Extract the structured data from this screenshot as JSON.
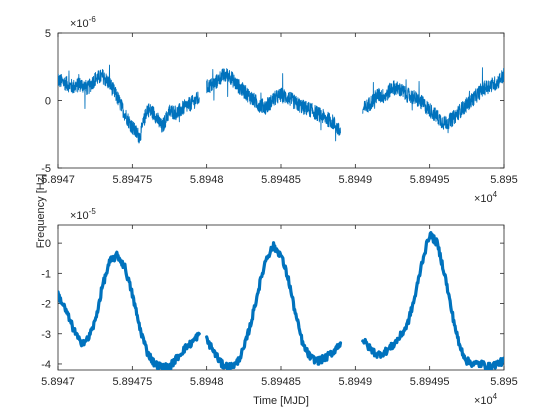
{
  "chart_data": [
    {
      "type": "line",
      "title": "",
      "xlabel": "",
      "ylabel": "",
      "xlim": [
        58947,
        58950
      ],
      "ylim": [
        -5e-06,
        5e-06
      ],
      "x_ticks": [
        "5.8947",
        "5.89475",
        "5.8948",
        "5.89485",
        "5.8949",
        "5.89495",
        "5.895"
      ],
      "y_ticks": [
        "-5",
        "0",
        "5"
      ],
      "y_exponent": "-6",
      "x_exponent": "4",
      "grid": false,
      "color": "#0072BD",
      "series": [
        {
          "segments": [
            {
              "x": [
                58947.0,
                58947.05,
                58947.1,
                58947.15,
                58947.2,
                58947.25,
                58947.3,
                58947.35,
                58947.4,
                58947.45,
                58947.5,
                58947.55,
                58947.6,
                58947.65,
                58947.7,
                58947.75,
                58947.8,
                58947.85,
                58947.9,
                58947.95
              ],
              "y": [
                1.5e-06,
                1.3e-06,
                1e-06,
                1.2e-06,
                9e-07,
                1.6e-06,
                1.8e-06,
                1.2e-06,
                2e-07,
                -1e-06,
                -2e-06,
                -2.7e-06,
                -6e-07,
                -1e-06,
                -2e-06,
                -8e-07,
                -9e-07,
                -5e-07,
                -2e-07,
                2e-07
              ]
            },
            {
              "x": [
                58948.0,
                58948.05,
                58948.1,
                58948.15,
                58948.2,
                58948.25,
                58948.3,
                58948.35,
                58948.4,
                58948.45,
                58948.5,
                58948.55,
                58948.6,
                58948.65,
                58948.7,
                58948.75,
                58948.8,
                58948.85,
                58948.9
              ],
              "y": [
                1e-06,
                1.2e-06,
                1.8e-06,
                1.9e-06,
                1.2e-06,
                7e-07,
                2e-07,
                -3e-07,
                -5e-07,
                1e-07,
                4e-07,
                2e-07,
                -2e-07,
                -5e-07,
                -7e-07,
                -1e-06,
                -1.3e-06,
                -1.6e-06,
                -2.4e-06
              ]
            },
            {
              "x": [
                58949.05,
                58949.1,
                58949.15,
                58949.2,
                58949.25,
                58949.3,
                58949.35,
                58949.4,
                58949.45,
                58949.5,
                58949.55,
                58949.6,
                58949.65,
                58949.7,
                58949.75,
                58949.8,
                58949.85,
                58949.9,
                58949.95,
                58950.0
              ],
              "y": [
                -7e-07,
                -2e-07,
                4e-07,
                3e-07,
                1e-06,
                8e-07,
                4e-07,
                2e-07,
                -2e-07,
                -7e-07,
                -1.2e-06,
                -1.7e-06,
                -1.4e-06,
                -8e-07,
                -3e-07,
                2e-07,
                8e-07,
                1.1e-06,
                1.3e-06,
                1.9e-06
              ]
            }
          ]
        }
      ]
    },
    {
      "type": "line",
      "title": "",
      "xlabel": "Time [MJD]",
      "ylabel": "",
      "xlim": [
        58947,
        58950
      ],
      "ylim": [
        -4.2e-05,
        6e-06
      ],
      "x_ticks": [
        "5.8947",
        "5.89475",
        "5.8948",
        "5.89485",
        "5.8949",
        "5.89495",
        "5.895"
      ],
      "y_ticks": [
        "-4",
        "-3",
        "-2",
        "-1",
        "0"
      ],
      "y_exponent": "-5",
      "x_exponent": "4",
      "grid": false,
      "color": "#0072BD",
      "series": [
        {
          "segments": [
            {
              "x": [
                58947.0,
                58947.05,
                58947.1,
                58947.15,
                58947.2,
                58947.25,
                58947.3,
                58947.35,
                58947.4,
                58947.45,
                58947.5,
                58947.55,
                58947.6,
                58947.65,
                58947.7,
                58947.75,
                58947.8,
                58947.85,
                58947.9,
                58947.95
              ],
              "y": [
                -1.7e-05,
                -2.2e-05,
                -2.8e-05,
                -3.3e-05,
                -3.2e-05,
                -2.6e-05,
                -1.4e-05,
                -6e-06,
                -4e-06,
                -8e-06,
                -1.7e-05,
                -2.8e-05,
                -3.6e-05,
                -4e-05,
                -4.1e-05,
                -4.1e-05,
                -3.8e-05,
                -3.5e-05,
                -3.3e-05,
                -3e-05
              ]
            },
            {
              "x": [
                58948.0,
                58948.05,
                58948.1,
                58948.15,
                58948.2,
                58948.25,
                58948.3,
                58948.35,
                58948.4,
                58948.45,
                58948.5,
                58948.55,
                58948.6,
                58948.65,
                58948.7,
                58948.75,
                58948.8,
                58948.85,
                58948.9
              ],
              "y": [
                -3.2e-05,
                -3.6e-05,
                -4e-05,
                -4.1e-05,
                -4e-05,
                -3.5e-05,
                -2.6e-05,
                -1.5e-05,
                -5e-06,
                -1e-06,
                -4e-06,
                -1.2e-05,
                -2.4e-05,
                -3.4e-05,
                -3.8e-05,
                -3.9e-05,
                -3.8e-05,
                -3.6e-05,
                -3.3e-05
              ]
            },
            {
              "x": [
                58949.05,
                58949.1,
                58949.15,
                58949.2,
                58949.25,
                58949.3,
                58949.35,
                58949.4,
                58949.45,
                58949.5,
                58949.55,
                58949.6,
                58949.65,
                58949.7,
                58949.75,
                58949.8,
                58949.85,
                58949.9,
                58949.95,
                58950.0
              ],
              "y": [
                -3.2e-05,
                -3.5e-05,
                -3.7e-05,
                -3.6e-05,
                -3.4e-05,
                -3.1e-05,
                -2.7e-05,
                -1.8e-05,
                -6e-06,
                3e-06,
                0.0,
                -1e-05,
                -2.3e-05,
                -3.4e-05,
                -3.9e-05,
                -4e-05,
                -4e-05,
                -4.1e-05,
                -4e-05,
                -3.9e-05
              ]
            }
          ]
        }
      ]
    }
  ],
  "figure": {
    "shared_ylabel": "Frequency [Hz]"
  }
}
